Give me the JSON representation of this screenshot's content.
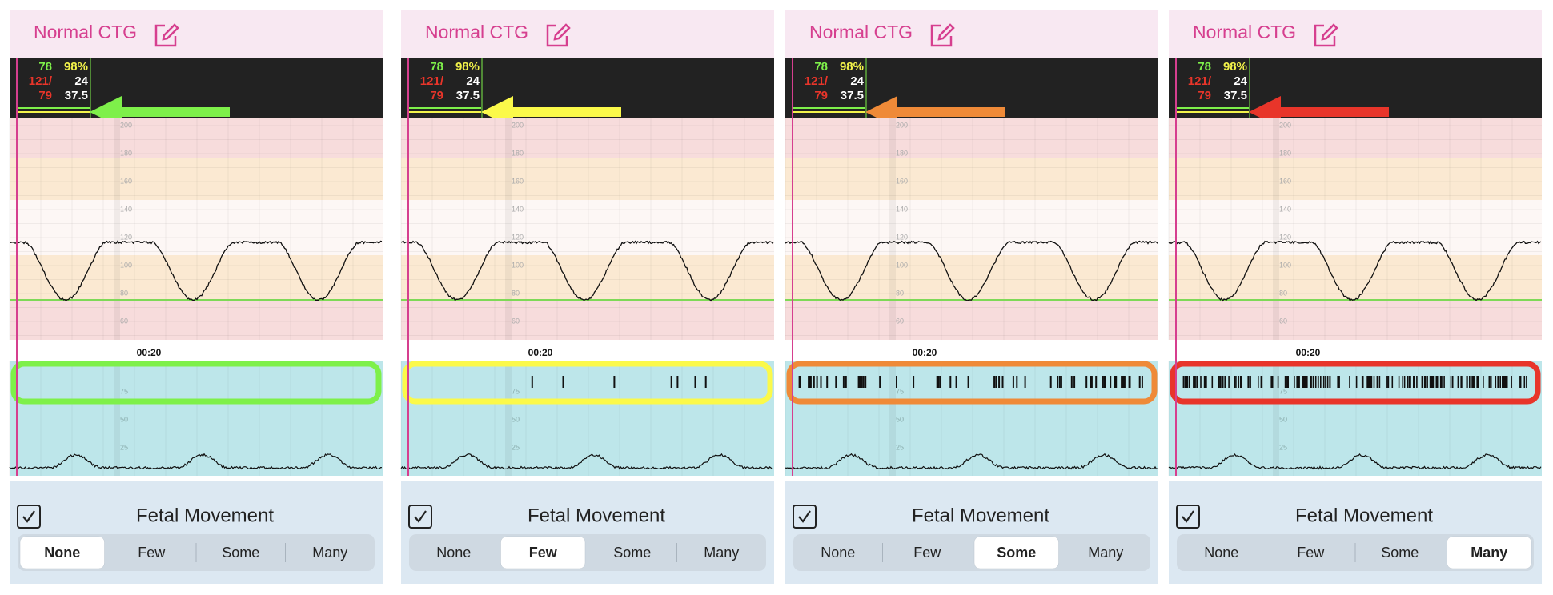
{
  "panels": [
    {
      "title": "Normal CTG",
      "vitals": {
        "pulse": "78",
        "spo2": "98%",
        "bp_sys": "121/",
        "resp": "24",
        "bp_dia": "79",
        "temp": "37.5"
      },
      "ctg_axis": [
        "200",
        "180",
        "160",
        "140",
        "120",
        "100",
        "80",
        "60"
      ],
      "time_label": "00:20",
      "toco_axis": [
        "75",
        "50",
        "25"
      ],
      "section_label": "Fetal Movement",
      "options": [
        "None",
        "Few",
        "Some",
        "Many"
      ],
      "selected": 0,
      "highlight_color": "#7ef04a"
    },
    {
      "title": "Normal CTG",
      "vitals": {
        "pulse": "78",
        "spo2": "98%",
        "bp_sys": "121/",
        "resp": "24",
        "bp_dia": "79",
        "temp": "37.5"
      },
      "ctg_axis": [
        "200",
        "180",
        "160",
        "140",
        "120",
        "100",
        "80",
        "60"
      ],
      "time_label": "00:20",
      "toco_axis": [
        "75",
        "50",
        "25"
      ],
      "section_label": "Fetal Movement",
      "options": [
        "None",
        "Few",
        "Some",
        "Many"
      ],
      "selected": 1,
      "highlight_color": "#fbf94a"
    },
    {
      "title": "Normal CTG",
      "vitals": {
        "pulse": "78",
        "spo2": "98%",
        "bp_sys": "121/",
        "resp": "24",
        "bp_dia": "79",
        "temp": "37.5"
      },
      "ctg_axis": [
        "200",
        "180",
        "160",
        "140",
        "120",
        "100",
        "80",
        "60"
      ],
      "time_label": "00:20",
      "toco_axis": [
        "75",
        "50",
        "25"
      ],
      "section_label": "Fetal Movement",
      "options": [
        "None",
        "Few",
        "Some",
        "Many"
      ],
      "selected": 2,
      "highlight_color": "#ef8a38"
    },
    {
      "title": "Normal CTG",
      "vitals": {
        "pulse": "78",
        "spo2": "98%",
        "bp_sys": "121/",
        "resp": "24",
        "bp_dia": "79",
        "temp": "37.5"
      },
      "ctg_axis": [
        "200",
        "180",
        "160",
        "140",
        "120",
        "100",
        "80",
        "60"
      ],
      "time_label": "00:20",
      "toco_axis": [
        "75",
        "50",
        "25"
      ],
      "section_label": "Fetal Movement",
      "options": [
        "None",
        "Few",
        "Some",
        "Many"
      ],
      "selected": 3,
      "highlight_color": "#e8352a"
    }
  ]
}
